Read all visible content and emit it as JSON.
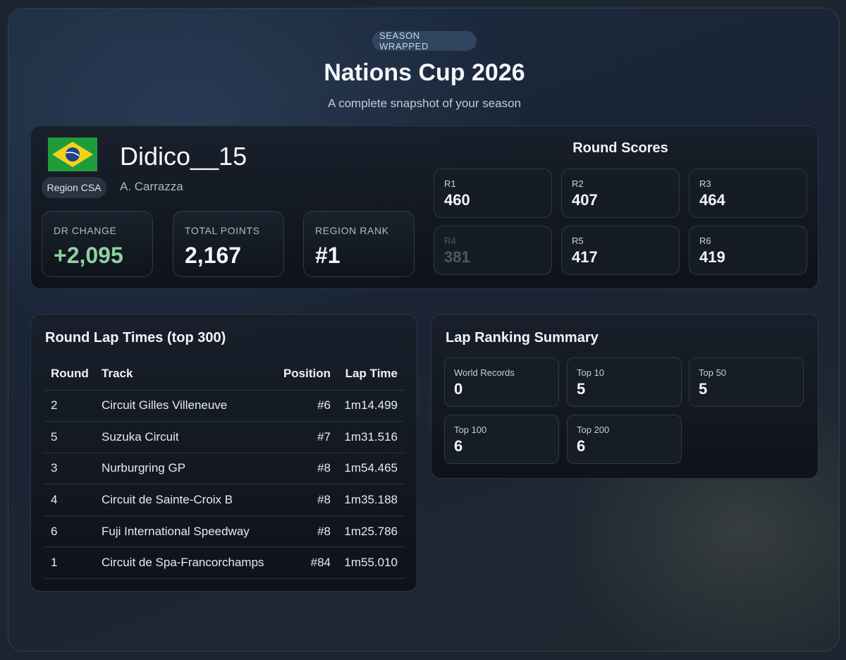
{
  "header": {
    "badge": "SEASON WRAPPED",
    "title": "Nations Cup 2026",
    "subtitle": "A complete snapshot of your season"
  },
  "profile": {
    "flag_icon": "brazil-flag-icon",
    "region": "Region CSA",
    "username": "Didico__15",
    "real_name": "A. Carrazza",
    "stats": [
      {
        "label": "DR CHANGE",
        "value": "+2,095",
        "color": "#8fd1a0"
      },
      {
        "label": "TOTAL POINTS",
        "value": "2,167"
      },
      {
        "label": "REGION RANK",
        "value": "#1"
      }
    ]
  },
  "round_scores": {
    "title": "Round Scores",
    "rounds": [
      {
        "label": "R1",
        "value": "460"
      },
      {
        "label": "R2",
        "value": "407"
      },
      {
        "label": "R3",
        "value": "464"
      },
      {
        "label": "R4",
        "value": "381",
        "dimmed": true
      },
      {
        "label": "R5",
        "value": "417"
      },
      {
        "label": "R6",
        "value": "419"
      }
    ]
  },
  "lap_times": {
    "title": "Round Lap Times (top 300)",
    "columns": [
      "Round",
      "Track",
      "Position",
      "Lap Time"
    ],
    "rows": [
      {
        "round": "2",
        "track": "Circuit Gilles Villeneuve",
        "position": "#6",
        "time": "1m14.499"
      },
      {
        "round": "5",
        "track": "Suzuka Circuit",
        "position": "#7",
        "time": "1m31.516"
      },
      {
        "round": "3",
        "track": "Nurburgring GP",
        "position": "#8",
        "time": "1m54.465"
      },
      {
        "round": "4",
        "track": "Circuit de Sainte-Croix B",
        "position": "#8",
        "time": "1m35.188"
      },
      {
        "round": "6",
        "track": "Fuji International Speedway",
        "position": "#8",
        "time": "1m25.786"
      },
      {
        "round": "1",
        "track": "Circuit de Spa-Francorchamps",
        "position": "#84",
        "time": "1m55.010"
      }
    ]
  },
  "lap_summary": {
    "title": "Lap Ranking Summary",
    "items": [
      {
        "label": "World Records",
        "value": "0"
      },
      {
        "label": "Top 10",
        "value": "5"
      },
      {
        "label": "Top 50",
        "value": "5"
      },
      {
        "label": "Top 100",
        "value": "6"
      },
      {
        "label": "Top 200",
        "value": "6"
      }
    ]
  }
}
